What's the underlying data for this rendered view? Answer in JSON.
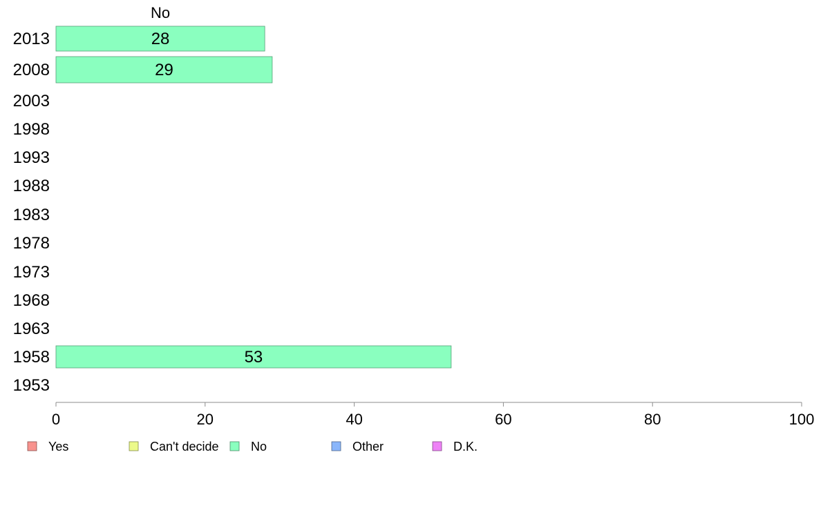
{
  "chart_data": {
    "type": "bar",
    "orientation": "horizontal",
    "categories": [
      "2013",
      "2008",
      "2003",
      "1998",
      "1993",
      "1988",
      "1983",
      "1978",
      "1973",
      "1968",
      "1963",
      "1958",
      "1953"
    ],
    "series": [
      {
        "name": "Yes",
        "color": "#f8938e",
        "values": [
          null,
          null,
          null,
          null,
          null,
          null,
          null,
          null,
          null,
          null,
          null,
          null,
          null
        ]
      },
      {
        "name": "Can't decide",
        "color": "#ecfa8a",
        "values": [
          null,
          null,
          null,
          null,
          null,
          null,
          null,
          null,
          null,
          null,
          null,
          null,
          null
        ]
      },
      {
        "name": "No",
        "color": "#8affbf",
        "values": [
          28,
          29,
          null,
          null,
          null,
          null,
          null,
          null,
          null,
          null,
          null,
          53,
          null
        ]
      },
      {
        "name": "Other",
        "color": "#8ab6fb",
        "values": [
          null,
          null,
          null,
          null,
          null,
          null,
          null,
          null,
          null,
          null,
          null,
          null,
          null
        ]
      },
      {
        "name": "D.K.",
        "color": "#ee82f6",
        "values": [
          null,
          null,
          null,
          null,
          null,
          null,
          null,
          null,
          null,
          null,
          null,
          null,
          null
        ]
      }
    ],
    "series_header": "No",
    "xlim": [
      0,
      100
    ],
    "xticks": [
      0,
      20,
      40,
      60,
      80,
      100
    ],
    "grid": false,
    "legend_position": "bottom-left"
  }
}
